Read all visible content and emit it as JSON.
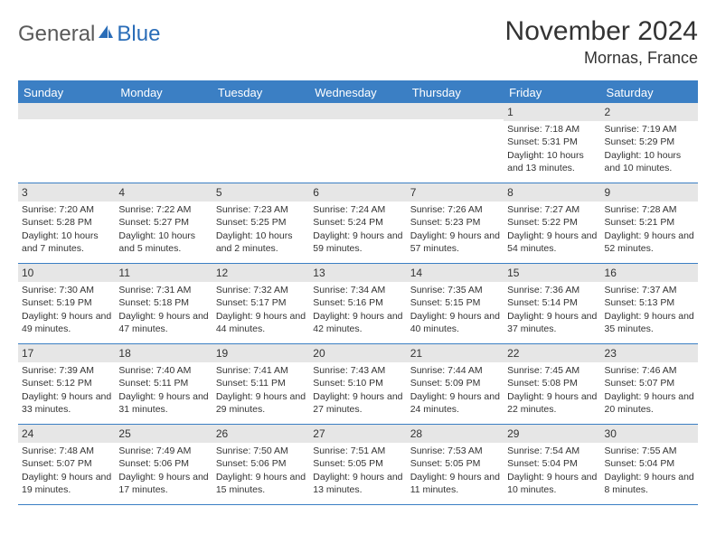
{
  "logo": {
    "general": "General",
    "blue": "Blue"
  },
  "title": "November 2024",
  "location": "Mornas, France",
  "colors": {
    "header_bar": "#3b7fc4",
    "header_text": "#ffffff",
    "daynum_bg": "#e6e6e6",
    "border": "#3b7fc4",
    "body_text": "#333333",
    "logo_gray": "#5a5a5a",
    "logo_blue": "#2a6db8",
    "background": "#ffffff"
  },
  "weekdays": [
    "Sunday",
    "Monday",
    "Tuesday",
    "Wednesday",
    "Thursday",
    "Friday",
    "Saturday"
  ],
  "weeks": [
    [
      {
        "n": "",
        "sr": "",
        "ss": "",
        "dl": ""
      },
      {
        "n": "",
        "sr": "",
        "ss": "",
        "dl": ""
      },
      {
        "n": "",
        "sr": "",
        "ss": "",
        "dl": ""
      },
      {
        "n": "",
        "sr": "",
        "ss": "",
        "dl": ""
      },
      {
        "n": "",
        "sr": "",
        "ss": "",
        "dl": ""
      },
      {
        "n": "1",
        "sr": "Sunrise: 7:18 AM",
        "ss": "Sunset: 5:31 PM",
        "dl": "Daylight: 10 hours and 13 minutes."
      },
      {
        "n": "2",
        "sr": "Sunrise: 7:19 AM",
        "ss": "Sunset: 5:29 PM",
        "dl": "Daylight: 10 hours and 10 minutes."
      }
    ],
    [
      {
        "n": "3",
        "sr": "Sunrise: 7:20 AM",
        "ss": "Sunset: 5:28 PM",
        "dl": "Daylight: 10 hours and 7 minutes."
      },
      {
        "n": "4",
        "sr": "Sunrise: 7:22 AM",
        "ss": "Sunset: 5:27 PM",
        "dl": "Daylight: 10 hours and 5 minutes."
      },
      {
        "n": "5",
        "sr": "Sunrise: 7:23 AM",
        "ss": "Sunset: 5:25 PM",
        "dl": "Daylight: 10 hours and 2 minutes."
      },
      {
        "n": "6",
        "sr": "Sunrise: 7:24 AM",
        "ss": "Sunset: 5:24 PM",
        "dl": "Daylight: 9 hours and 59 minutes."
      },
      {
        "n": "7",
        "sr": "Sunrise: 7:26 AM",
        "ss": "Sunset: 5:23 PM",
        "dl": "Daylight: 9 hours and 57 minutes."
      },
      {
        "n": "8",
        "sr": "Sunrise: 7:27 AM",
        "ss": "Sunset: 5:22 PM",
        "dl": "Daylight: 9 hours and 54 minutes."
      },
      {
        "n": "9",
        "sr": "Sunrise: 7:28 AM",
        "ss": "Sunset: 5:21 PM",
        "dl": "Daylight: 9 hours and 52 minutes."
      }
    ],
    [
      {
        "n": "10",
        "sr": "Sunrise: 7:30 AM",
        "ss": "Sunset: 5:19 PM",
        "dl": "Daylight: 9 hours and 49 minutes."
      },
      {
        "n": "11",
        "sr": "Sunrise: 7:31 AM",
        "ss": "Sunset: 5:18 PM",
        "dl": "Daylight: 9 hours and 47 minutes."
      },
      {
        "n": "12",
        "sr": "Sunrise: 7:32 AM",
        "ss": "Sunset: 5:17 PM",
        "dl": "Daylight: 9 hours and 44 minutes."
      },
      {
        "n": "13",
        "sr": "Sunrise: 7:34 AM",
        "ss": "Sunset: 5:16 PM",
        "dl": "Daylight: 9 hours and 42 minutes."
      },
      {
        "n": "14",
        "sr": "Sunrise: 7:35 AM",
        "ss": "Sunset: 5:15 PM",
        "dl": "Daylight: 9 hours and 40 minutes."
      },
      {
        "n": "15",
        "sr": "Sunrise: 7:36 AM",
        "ss": "Sunset: 5:14 PM",
        "dl": "Daylight: 9 hours and 37 minutes."
      },
      {
        "n": "16",
        "sr": "Sunrise: 7:37 AM",
        "ss": "Sunset: 5:13 PM",
        "dl": "Daylight: 9 hours and 35 minutes."
      }
    ],
    [
      {
        "n": "17",
        "sr": "Sunrise: 7:39 AM",
        "ss": "Sunset: 5:12 PM",
        "dl": "Daylight: 9 hours and 33 minutes."
      },
      {
        "n": "18",
        "sr": "Sunrise: 7:40 AM",
        "ss": "Sunset: 5:11 PM",
        "dl": "Daylight: 9 hours and 31 minutes."
      },
      {
        "n": "19",
        "sr": "Sunrise: 7:41 AM",
        "ss": "Sunset: 5:11 PM",
        "dl": "Daylight: 9 hours and 29 minutes."
      },
      {
        "n": "20",
        "sr": "Sunrise: 7:43 AM",
        "ss": "Sunset: 5:10 PM",
        "dl": "Daylight: 9 hours and 27 minutes."
      },
      {
        "n": "21",
        "sr": "Sunrise: 7:44 AM",
        "ss": "Sunset: 5:09 PM",
        "dl": "Daylight: 9 hours and 24 minutes."
      },
      {
        "n": "22",
        "sr": "Sunrise: 7:45 AM",
        "ss": "Sunset: 5:08 PM",
        "dl": "Daylight: 9 hours and 22 minutes."
      },
      {
        "n": "23",
        "sr": "Sunrise: 7:46 AM",
        "ss": "Sunset: 5:07 PM",
        "dl": "Daylight: 9 hours and 20 minutes."
      }
    ],
    [
      {
        "n": "24",
        "sr": "Sunrise: 7:48 AM",
        "ss": "Sunset: 5:07 PM",
        "dl": "Daylight: 9 hours and 19 minutes."
      },
      {
        "n": "25",
        "sr": "Sunrise: 7:49 AM",
        "ss": "Sunset: 5:06 PM",
        "dl": "Daylight: 9 hours and 17 minutes."
      },
      {
        "n": "26",
        "sr": "Sunrise: 7:50 AM",
        "ss": "Sunset: 5:06 PM",
        "dl": "Daylight: 9 hours and 15 minutes."
      },
      {
        "n": "27",
        "sr": "Sunrise: 7:51 AM",
        "ss": "Sunset: 5:05 PM",
        "dl": "Daylight: 9 hours and 13 minutes."
      },
      {
        "n": "28",
        "sr": "Sunrise: 7:53 AM",
        "ss": "Sunset: 5:05 PM",
        "dl": "Daylight: 9 hours and 11 minutes."
      },
      {
        "n": "29",
        "sr": "Sunrise: 7:54 AM",
        "ss": "Sunset: 5:04 PM",
        "dl": "Daylight: 9 hours and 10 minutes."
      },
      {
        "n": "30",
        "sr": "Sunrise: 7:55 AM",
        "ss": "Sunset: 5:04 PM",
        "dl": "Daylight: 9 hours and 8 minutes."
      }
    ]
  ]
}
